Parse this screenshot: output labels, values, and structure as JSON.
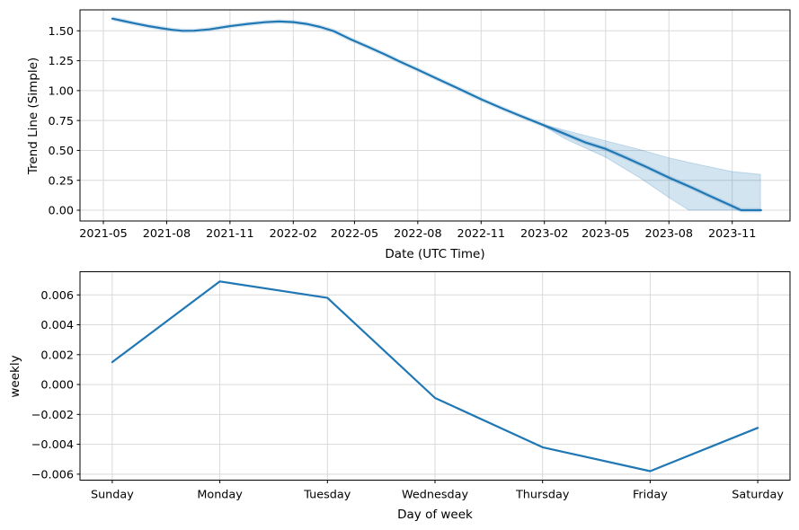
{
  "figure": {
    "background": "#ffffff",
    "accent_color": "#1f77b4",
    "text_color": "#000000",
    "grid_color": "#d9d9d9",
    "spine_color": "#000000"
  },
  "chart_data": [
    {
      "type": "line",
      "title": "",
      "xlabel": "Date (UTC Time)",
      "ylabel": "Trend Line (Simple)",
      "x_encoding": "days since 2021-01-01",
      "xlim": [
        86,
        1118
      ],
      "ylim": [
        -0.09,
        1.675
      ],
      "grid": true,
      "legend": "none",
      "line_color": "#1f77b4",
      "band_fill": "rgba(31,119,180,0.2)",
      "band_edge": "rgba(31,119,180,0.22)",
      "xticks": {
        "values": [
          120,
          212,
          304,
          396,
          485,
          577,
          669,
          761,
          850,
          942,
          1034
        ],
        "labels": [
          "2021-05",
          "2021-08",
          "2021-11",
          "2022-02",
          "2022-05",
          "2022-08",
          "2022-11",
          "2023-02",
          "2023-05",
          "2023-08",
          "2023-11"
        ]
      },
      "yticks": {
        "values": [
          0,
          0.25,
          0.5,
          0.75,
          1.0,
          1.25,
          1.5
        ],
        "labels": [
          "0.00",
          "0.25",
          "0.50",
          "0.75",
          "1.00",
          "1.25",
          "1.50"
        ]
      },
      "series": [
        {
          "name": "trend",
          "x": [
            133,
            150,
            165,
            185,
            205,
            220,
            235,
            252,
            274,
            303,
            330,
            355,
            375,
            396,
            415,
            435,
            455,
            479,
            505,
            530,
            550,
            577,
            605,
            635,
            669,
            700,
            730,
            755,
            790,
            820,
            850,
            880,
            910,
            942,
            975,
            1005,
            1030,
            1047,
            1076
          ],
          "y": [
            1.602,
            1.581,
            1.563,
            1.54,
            1.521,
            1.508,
            1.5,
            1.501,
            1.512,
            1.538,
            1.558,
            1.572,
            1.578,
            1.573,
            1.558,
            1.532,
            1.497,
            1.43,
            1.365,
            1.3,
            1.245,
            1.175,
            1.1,
            1.02,
            0.928,
            0.85,
            0.78,
            0.723,
            0.64,
            0.568,
            0.513,
            0.438,
            0.36,
            0.273,
            0.19,
            0.11,
            0.045,
            0.0,
            0.0
          ]
        }
      ],
      "uncertainty_band": {
        "x_upper": [
          755,
          790,
          850,
          900,
          942,
          990,
          1034,
          1075
        ],
        "y_upper": [
          0.723,
          0.67,
          0.581,
          0.506,
          0.438,
          0.376,
          0.323,
          0.3
        ],
        "x_lower": [
          755,
          790,
          850,
          900,
          942,
          971,
          1075
        ],
        "y_lower": [
          0.723,
          0.6,
          0.443,
          0.27,
          0.105,
          0.0,
          0.0
        ]
      }
    },
    {
      "type": "line",
      "title": "",
      "xlabel": "Day of week",
      "ylabel": "weekly",
      "categories": [
        "Sunday",
        "Monday",
        "Tuesday",
        "Wednesday",
        "Thursday",
        "Friday",
        "Saturday"
      ],
      "values": [
        0.0015,
        0.0069,
        0.0058,
        -0.0009,
        -0.0042,
        -0.0058,
        -0.0029
      ],
      "xlim": [
        -0.3,
        6.3
      ],
      "ylim": [
        -0.0064,
        0.00755
      ],
      "grid": true,
      "legend": "none",
      "line_color": "#1f77b4",
      "yticks": {
        "values": [
          -0.006,
          -0.004,
          -0.002,
          0,
          0.002,
          0.004,
          0.006
        ],
        "labels": [
          "−0.006",
          "−0.004",
          "−0.002",
          "0.000",
          "0.002",
          "0.004",
          "0.006"
        ]
      }
    }
  ]
}
